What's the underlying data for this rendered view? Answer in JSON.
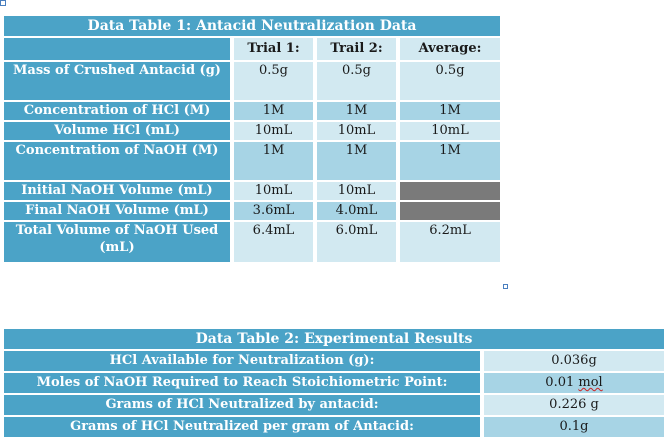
{
  "table1": {
    "title": "Data Table 1: Antacid Neutralization Data",
    "columns": [
      "Trial 1:",
      "Trail 2:",
      "Average:"
    ],
    "rows": [
      {
        "label": "Mass of Crushed Antacid (g)",
        "values": [
          "0.5g",
          "0.5g",
          "0.5g"
        ]
      },
      {
        "label": "Concentration of HCl (M)",
        "values": [
          "1M",
          "1M",
          "1M"
        ]
      },
      {
        "label": "Volume HCl (mL)",
        "values": [
          "10mL",
          "10mL",
          "10mL"
        ]
      },
      {
        "label": "Concentration of NaOH (M)",
        "values": [
          "1M",
          "1M",
          "1M"
        ]
      },
      {
        "label": "Initial NaOH Volume (mL)",
        "values": [
          "10mL",
          "10mL",
          ""
        ]
      },
      {
        "label": "Final NaOH Volume (mL)",
        "values": [
          "3.6mL",
          "4.0mL",
          ""
        ]
      },
      {
        "label": "Total Volume of NaOH Used (mL)",
        "values": [
          "6.4mL",
          "6.0mL",
          "6.2mL"
        ]
      }
    ]
  },
  "table2": {
    "title": "Data Table 2: Experimental Results",
    "rows": [
      {
        "label": "HCl Available for Neutralization (g):",
        "value": "0.036g"
      },
      {
        "label": "Moles of NaOH Required to Reach Stoichiometric Point:",
        "value_num": "0.01",
        "value_unit": "mol"
      },
      {
        "label": "Grams of HCl Neutralized by antacid:",
        "value": "0.226 g"
      },
      {
        "label": "Grams of HCl Neutralized per gram of Antacid:",
        "value": "0.1g"
      }
    ]
  },
  "colors": {
    "header": "#4ba3c7",
    "cell_light": "#d2e9f1",
    "cell_mid": "#a7d4e5",
    "cell_blank": "#7a7a7a"
  }
}
